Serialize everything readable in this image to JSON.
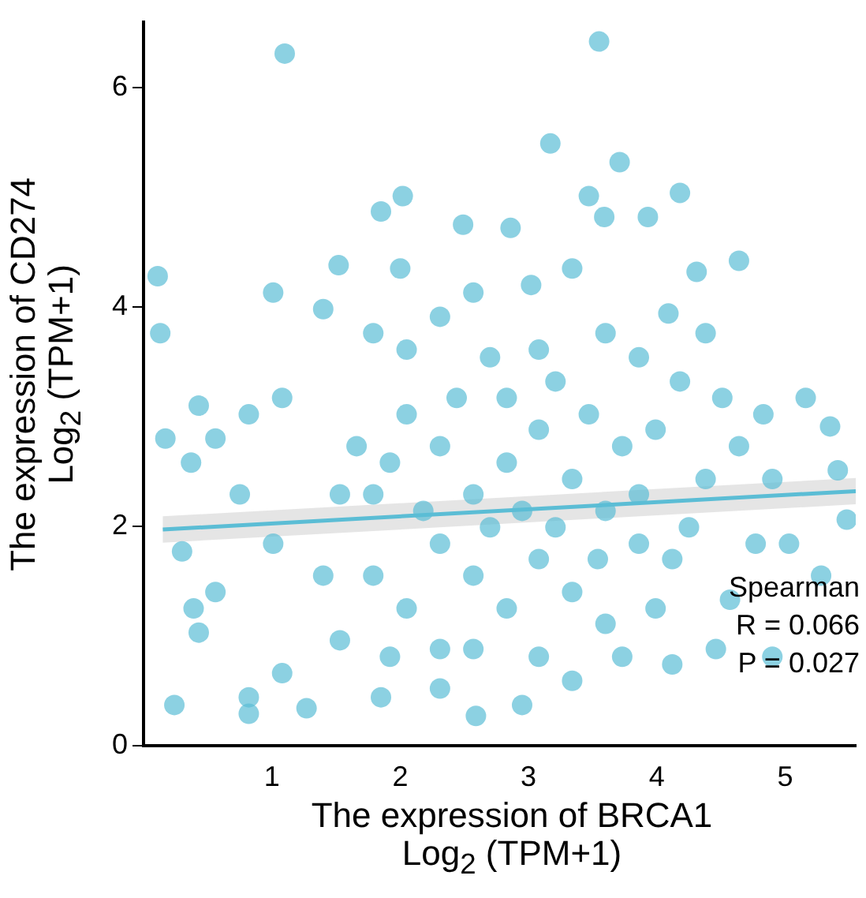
{
  "chart_data": {
    "type": "scatter",
    "xlabel": "The expression of BRCA1\nLog$_{2}$ (TPM+1)",
    "ylabel": "The expression of CD274\nLog$_{2}$ (TPM+1)",
    "xlim": [
      0,
      5.55
    ],
    "ylim": [
      0,
      6.6
    ],
    "xticks": [
      1,
      2,
      3,
      4,
      5
    ],
    "yticks": [
      0,
      2,
      4,
      6
    ],
    "grid": false,
    "legend": false,
    "annotations": [
      "Spearman",
      "R = 0.066",
      "P = 0.027"
    ],
    "series": [
      {
        "marker": "circle",
        "color": "#5bbdd5",
        "x": [
          1.1,
          3.55,
          3.17,
          3.71,
          3.47,
          2.02,
          4.18,
          1.85,
          3.93,
          3.59,
          4.64,
          1.52,
          0.11,
          2.49,
          2.86,
          2.0,
          0.13,
          1.01,
          1.4,
          4.31,
          4.09,
          4.38,
          4.83,
          5.16,
          5.35,
          5.41,
          5.48,
          5.28,
          5.03,
          0.17,
          0.56,
          0.37,
          0.82,
          1.08,
          0.43,
          0.3,
          0.39,
          0.43,
          0.56,
          0.24,
          0.82,
          0.82,
          1.27,
          1.53,
          1.08,
          1.85,
          2.31,
          2.59,
          2.95,
          3.34,
          3.73,
          4.12,
          4.46,
          4.9,
          4.57,
          1.53,
          0.75,
          1.4,
          1.01,
          1.79,
          2.05,
          2.31,
          2.57,
          3.02,
          3.34,
          2.7,
          3.08,
          3.6,
          3.86,
          4.18,
          4.51,
          4.64,
          4.38,
          3.99,
          2.05,
          2.31,
          2.57,
          2.83,
          3.08,
          3.34,
          3.6,
          3.86,
          4.12,
          2.31,
          2.57,
          2.83,
          3.08,
          3.34,
          3.6,
          2.05,
          1.79,
          1.79,
          2.83,
          2.44,
          3.21,
          3.47,
          3.73,
          2.95,
          2.7,
          3.21,
          2.18,
          1.92,
          1.66,
          3.86,
          4.25,
          4.9,
          4.77,
          2.57,
          3.08,
          2.31,
          1.92,
          3.99,
          3.54
        ],
        "values": [
          6.31,
          6.42,
          5.49,
          5.32,
          5.01,
          5.01,
          5.04,
          4.87,
          4.82,
          4.82,
          4.42,
          4.38,
          4.28,
          4.75,
          4.72,
          4.35,
          3.76,
          4.13,
          3.98,
          4.32,
          3.94,
          3.76,
          3.02,
          3.17,
          2.91,
          2.51,
          2.06,
          1.55,
          1.84,
          2.8,
          2.8,
          2.58,
          3.02,
          3.17,
          3.1,
          1.77,
          1.25,
          1.03,
          1.4,
          0.37,
          0.44,
          0.29,
          0.34,
          0.96,
          0.66,
          0.44,
          0.52,
          0.27,
          0.37,
          0.59,
          0.81,
          0.74,
          0.88,
          0.81,
          1.33,
          2.29,
          2.29,
          1.55,
          1.84,
          3.76,
          3.61,
          3.91,
          4.13,
          4.2,
          4.35,
          3.54,
          3.61,
          3.76,
          3.54,
          3.32,
          3.17,
          2.73,
          2.43,
          2.88,
          3.02,
          2.73,
          2.29,
          2.58,
          2.88,
          2.43,
          2.14,
          1.84,
          1.7,
          1.84,
          1.55,
          1.25,
          1.7,
          1.4,
          1.11,
          1.25,
          1.55,
          2.29,
          3.17,
          3.17,
          3.32,
          3.02,
          2.73,
          2.14,
          1.99,
          1.99,
          2.14,
          2.58,
          2.73,
          2.29,
          1.99,
          2.43,
          1.84,
          0.88,
          0.81,
          0.88,
          0.81,
          1.25,
          1.7
        ]
      },
      {
        "type": "line",
        "color": "#5bbdd5",
        "x": [
          0.15,
          5.55
        ],
        "values": [
          1.97,
          2.32
        ],
        "lower": [
          1.85,
          2.2
        ],
        "upper": [
          2.09,
          2.44
        ]
      }
    ]
  }
}
